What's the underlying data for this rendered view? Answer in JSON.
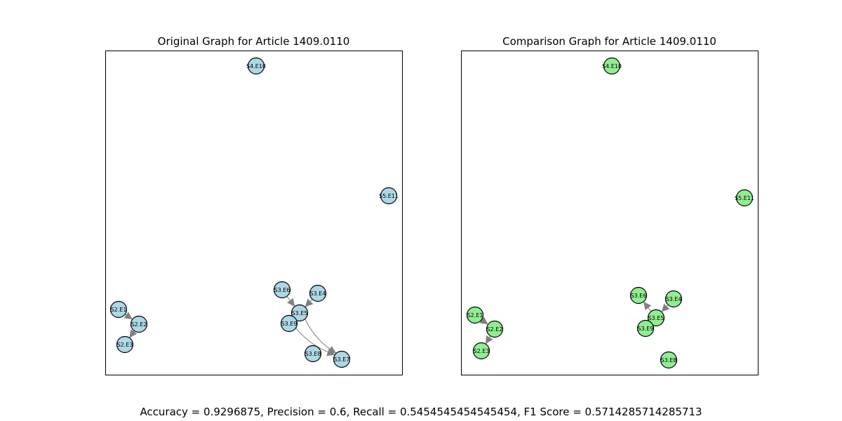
{
  "left_panel": {
    "title": "Original Graph for Article 1409.0110",
    "node_fill": "#add8e6",
    "nodes": [
      {
        "id": "S4.E10"
      },
      {
        "id": "S5.E11"
      },
      {
        "id": "S3.E6"
      },
      {
        "id": "S3.E4"
      },
      {
        "id": "S3.E5"
      },
      {
        "id": "S3.E9"
      },
      {
        "id": "S3.E8"
      },
      {
        "id": "S3.E7"
      },
      {
        "id": "S2.E1"
      },
      {
        "id": "S2.E2"
      },
      {
        "id": "S2.E3"
      }
    ],
    "edges": [
      {
        "source": "S2.E1",
        "target": "S2.E2"
      },
      {
        "source": "S2.E2",
        "target": "S2.E3"
      },
      {
        "source": "S3.E6",
        "target": "S3.E5"
      },
      {
        "source": "S3.E4",
        "target": "S3.E5"
      },
      {
        "source": "S3.E5",
        "target": "S3.E7"
      },
      {
        "source": "S3.E9",
        "target": "S3.E7"
      }
    ]
  },
  "right_panel": {
    "title": "Comparison Graph for Article 1409.0110",
    "node_fill": "#90ee90",
    "nodes": [
      {
        "id": "S4.E10"
      },
      {
        "id": "S5.E11"
      },
      {
        "id": "S3.E6"
      },
      {
        "id": "S3.E4"
      },
      {
        "id": "S3.E5"
      },
      {
        "id": "S3.E9"
      },
      {
        "id": "S3.E8"
      },
      {
        "id": "S2.E1"
      },
      {
        "id": "S2.E2"
      },
      {
        "id": "S2.E3"
      }
    ],
    "edges": [
      {
        "source": "S2.E1",
        "target": "S2.E2"
      },
      {
        "source": "S2.E2",
        "target": "S2.E3"
      },
      {
        "source": "S3.E5",
        "target": "S3.E6"
      },
      {
        "source": "S3.E4",
        "target": "S3.E5"
      },
      {
        "source": "S3.E9",
        "target": "S3.E5"
      }
    ]
  },
  "metrics_text": "Accuracy = 0.9296875, Precision = 0.6, Recall = 0.5454545454545454, F1 Score = 0.5714285714285713",
  "edge_color": "#808080",
  "node_stroke": "#000000"
}
